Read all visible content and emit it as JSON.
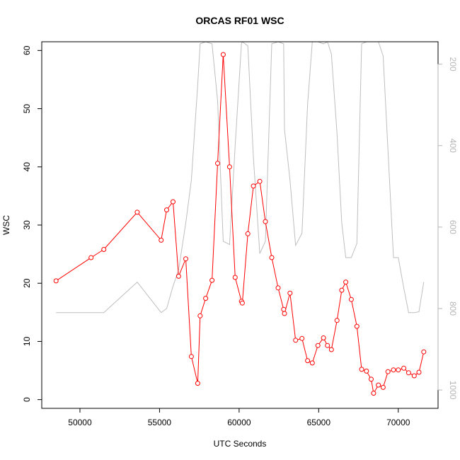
{
  "chart_data": {
    "type": "line",
    "title": "ORCAS RF01 WSC",
    "xlabel": "UTC Seconds",
    "ylabel": "WSC",
    "xlim": [
      47600,
      72500
    ],
    "ylim": [
      -1.5,
      61.5
    ],
    "x_ticks": [
      50000,
      55000,
      60000,
      65000,
      70000
    ],
    "y_ticks": [
      0,
      10,
      20,
      30,
      40,
      50,
      60
    ],
    "y2lim": [
      1045,
      145
    ],
    "y2_ticks": [
      200,
      400,
      600,
      800,
      1000
    ],
    "grid": false,
    "colors": {
      "primary": "#ff0000",
      "secondary": "#bebebe"
    },
    "series": [
      {
        "color": "#ff0000",
        "markers": "open-circle",
        "x": [
          48500,
          50700,
          51500,
          53600,
          55100,
          55450,
          55850,
          56200,
          56650,
          57000,
          57400,
          57550,
          57900,
          58300,
          58650,
          59000,
          59400,
          59750,
          60150,
          60200,
          60550,
          60900,
          61300,
          61650,
          62050,
          62450,
          62800,
          62850,
          63200,
          63550,
          63950,
          64300,
          64600,
          64950,
          65300,
          65550,
          65800,
          66150,
          66450,
          66700,
          67050,
          67400,
          67700,
          68000,
          68300,
          68450,
          68750,
          69050,
          69350,
          69700,
          70000,
          70350,
          70650,
          71000,
          71300,
          71600
        ],
        "y": [
          20.4,
          24.4,
          25.8,
          32.2,
          27.4,
          32.6,
          34.0,
          21.2,
          24.2,
          7.4,
          2.8,
          14.4,
          17.4,
          20.5,
          40.6,
          59.3,
          40.0,
          21.0,
          16.9,
          16.6,
          28.5,
          36.7,
          37.5,
          30.6,
          24.4,
          19.2,
          15.5,
          14.8,
          18.3,
          10.2,
          10.5,
          6.7,
          6.3,
          9.3,
          10.6,
          9.3,
          8.6,
          13.6,
          18.8,
          20.2,
          17.2,
          12.6,
          5.2,
          4.9,
          3.5,
          1.1,
          2.5,
          2.1,
          4.8,
          5.1,
          5.1,
          5.4,
          4.6,
          4.1,
          4.7,
          8.2
        ]
      },
      {
        "color": "#bebebe",
        "axis": "right",
        "markers": "none",
        "x": [
          48500,
          50700,
          51500,
          53600,
          55100,
          55450,
          55850,
          56200,
          56650,
          57000,
          57400,
          57550,
          57900,
          58300,
          58650,
          59000,
          59400,
          59750,
          60150,
          60200,
          60550,
          60900,
          61300,
          61650,
          62050,
          62450,
          62800,
          62850,
          63200,
          63550,
          63950,
          64300,
          64600,
          64950,
          65300,
          65550,
          65800,
          66150,
          66450,
          66700,
          67050,
          67400,
          67700,
          68000,
          68300,
          68450,
          68750,
          69050,
          69350,
          69700,
          70000,
          70350,
          70650,
          71000,
          71300,
          71600
        ],
        "y": [
          810,
          810,
          810,
          735,
          810,
          800,
          745,
          705,
          590,
          485,
          250,
          150,
          145,
          150,
          290,
          635,
          643,
          400,
          150,
          145,
          155,
          430,
          665,
          635,
          150,
          145,
          150,
          360,
          485,
          645,
          615,
          300,
          145,
          145,
          150,
          145,
          175,
          370,
          590,
          675,
          675,
          640,
          150,
          145,
          145,
          145,
          145,
          180,
          410,
          675,
          675,
          750,
          810,
          810,
          808,
          735
        ]
      }
    ]
  }
}
